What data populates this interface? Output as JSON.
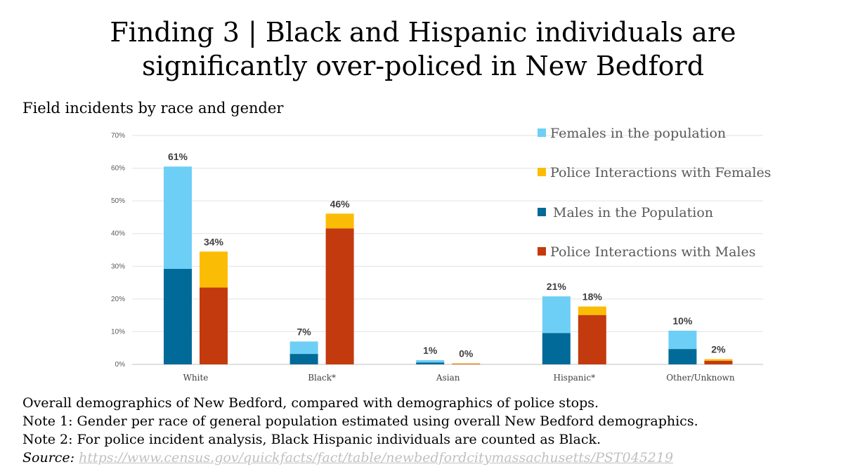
{
  "title_line1": "Finding 3 | Black and Hispanic individuals are",
  "title_line2": "significantly over-policed in New Bedford",
  "subtitle": "Field incidents by race and gender",
  "notes": [
    "Overall demographics of New Bedford, compared with demographics of police stops.",
    "Note 1: Gender per race of general population estimated using overall New Bedford demographics.",
    "Note 2: For police incident analysis, Black Hispanic individuals are counted as Black."
  ],
  "source_label": "Source:",
  "source_url": "https://www.census.gov/quickfacts/fact/table/newbedfordcitymassachusetts/PST045219",
  "chart_data": {
    "type": "bar",
    "stacked": true,
    "grid": true,
    "legend_position": "top-right",
    "ylim": [
      0,
      70
    ],
    "yticks": [
      "0%",
      "10%",
      "20%",
      "30%",
      "40%",
      "50%",
      "60%",
      "70%"
    ],
    "categories": [
      "White",
      "Black*",
      "Asian",
      "Hispanic*",
      "Other/Unknown"
    ],
    "series": [
      {
        "name": "Males in the Population",
        "group": "population",
        "color": "#016a98",
        "values": [
          29.2,
          3.2,
          0.6,
          9.6,
          4.7
        ]
      },
      {
        "name": "Females in the population",
        "group": "population",
        "color": "#6dcff6",
        "values": [
          31.3,
          3.8,
          0.7,
          11.2,
          5.6
        ]
      },
      {
        "name": "Police Interactions with Males",
        "group": "police",
        "color": "#c33a0e",
        "values": [
          23.5,
          41.6,
          0.2,
          15.1,
          1.1
        ]
      },
      {
        "name": "Police Interactions with Females",
        "group": "police",
        "color": "#fbbc05",
        "values": [
          11.0,
          4.5,
          0.1,
          2.6,
          0.5
        ]
      }
    ],
    "totals_labels": {
      "population": [
        "61%",
        "7%",
        "1%",
        "21%",
        "10%"
      ],
      "police": [
        "34%",
        "46%",
        "0%",
        "18%",
        "2%"
      ]
    },
    "legend_order": [
      "Females in the population",
      "Police Interactions with Females",
      "Males in the Population",
      "Police Interactions with Males"
    ]
  }
}
